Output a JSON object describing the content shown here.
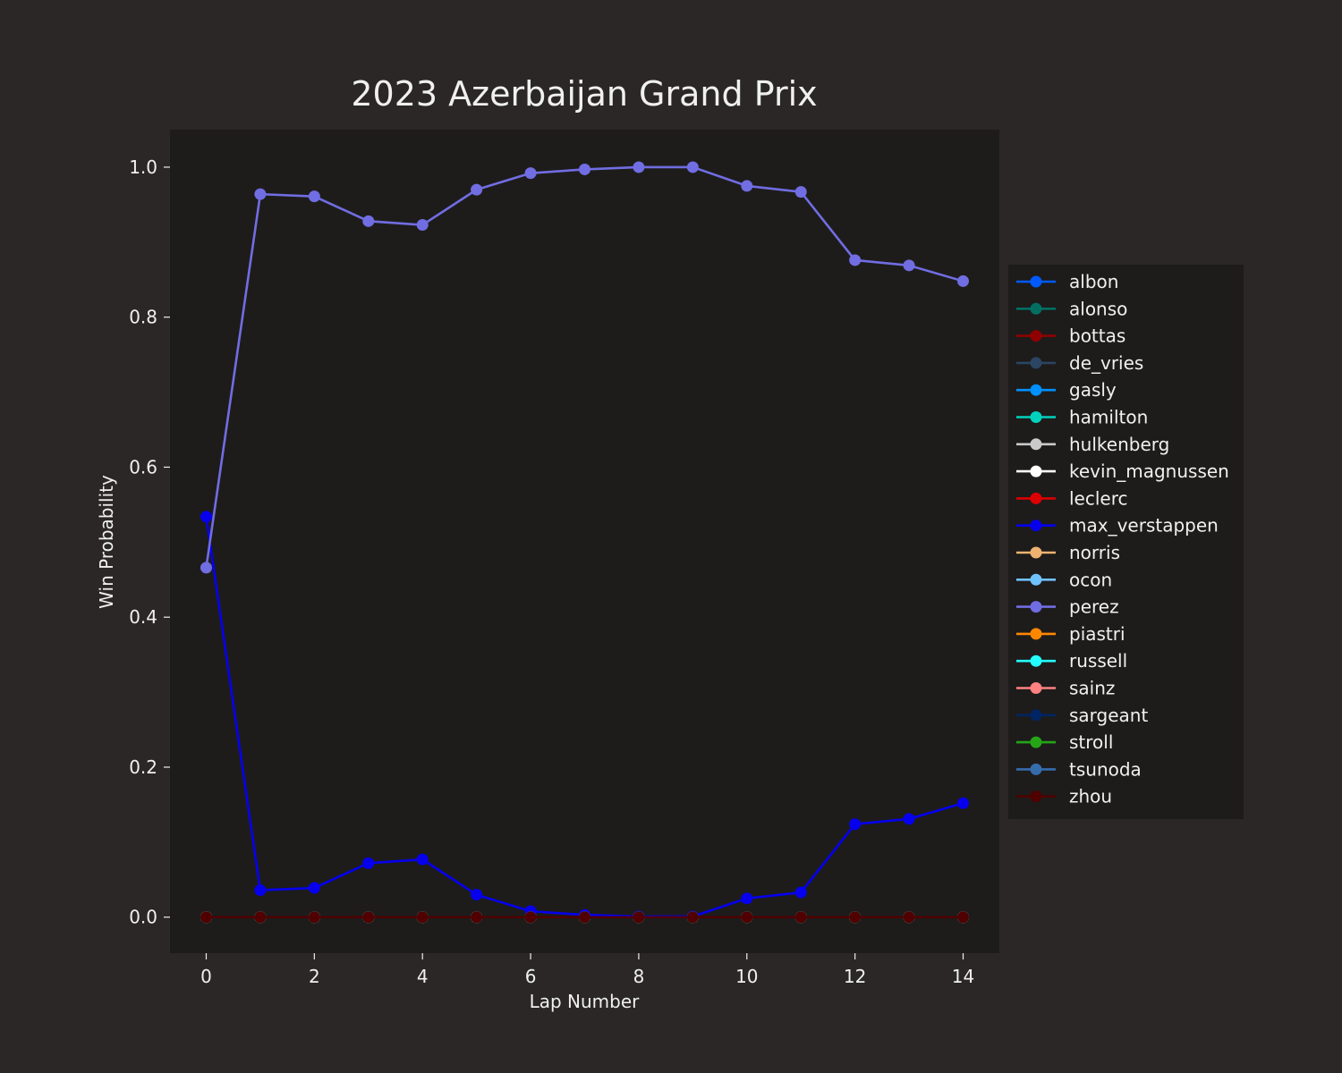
{
  "chart_data": {
    "type": "line",
    "title": "2023 Azerbaijan Grand Prix",
    "xlabel": "Lap Number",
    "ylabel": "Win Probability",
    "xlim": [
      -0.67,
      14.67
    ],
    "ylim": [
      -0.048,
      1.05
    ],
    "xticks": [
      0,
      2,
      4,
      6,
      8,
      10,
      12,
      14
    ],
    "yticks": [
      0.0,
      0.2,
      0.4,
      0.6,
      0.8,
      1.0
    ],
    "grid": false,
    "legend_position": "right",
    "x": [
      0,
      1,
      2,
      3,
      4,
      5,
      6,
      7,
      8,
      9,
      10,
      11,
      12,
      13,
      14
    ],
    "series": [
      {
        "name": "albon",
        "color": "#005aff",
        "values": [
          0,
          0,
          0,
          0,
          0,
          0,
          0,
          0,
          0,
          0,
          0,
          0,
          0,
          0,
          0
        ]
      },
      {
        "name": "alonso",
        "color": "#006f62",
        "values": [
          0,
          0,
          0,
          0,
          0,
          0,
          0,
          0,
          0,
          0,
          0,
          0,
          0,
          0,
          0
        ]
      },
      {
        "name": "bottas",
        "color": "#900000",
        "values": [
          0,
          0,
          0,
          0,
          0,
          0,
          0,
          0,
          0,
          0,
          0,
          0,
          0,
          0,
          0
        ]
      },
      {
        "name": "de_vries",
        "color": "#2b4562",
        "values": [
          0,
          0,
          0,
          0,
          0,
          0,
          0,
          0,
          0,
          0,
          0,
          0,
          0,
          0,
          0
        ]
      },
      {
        "name": "gasly",
        "color": "#0090ff",
        "values": [
          0,
          0,
          0,
          0,
          0,
          0,
          0,
          0,
          0,
          0,
          0,
          0,
          0,
          0,
          0
        ]
      },
      {
        "name": "hamilton",
        "color": "#00d2be",
        "values": [
          0,
          0,
          0,
          0,
          0,
          0,
          0,
          0,
          0,
          0,
          0,
          0,
          0,
          0,
          0
        ]
      },
      {
        "name": "hulkenberg",
        "color": "#cacaca",
        "values": [
          0,
          0,
          0,
          0,
          0,
          0,
          0,
          0,
          0,
          0,
          0,
          0,
          0,
          0,
          0
        ]
      },
      {
        "name": "kevin_magnussen",
        "color": "#ffffff",
        "values": [
          0,
          0,
          0,
          0,
          0,
          0,
          0,
          0,
          0,
          0,
          0,
          0,
          0,
          0,
          0
        ]
      },
      {
        "name": "leclerc",
        "color": "#dc0000",
        "values": [
          0,
          0,
          0,
          0,
          0,
          0,
          0,
          0,
          0,
          0,
          0,
          0,
          0,
          0,
          0
        ]
      },
      {
        "name": "max_verstappen",
        "color": "#0600ef",
        "values": [
          0.534,
          0.036,
          0.039,
          0.072,
          0.077,
          0.03,
          0.008,
          0.003,
          0.001,
          0.001,
          0.025,
          0.033,
          0.124,
          0.131,
          0.152
        ]
      },
      {
        "name": "norris",
        "color": "#eeb370",
        "values": [
          0,
          0,
          0,
          0,
          0,
          0,
          0,
          0,
          0,
          0,
          0,
          0,
          0,
          0,
          0
        ]
      },
      {
        "name": "ocon",
        "color": "#70c2ff",
        "values": [
          0,
          0,
          0,
          0,
          0,
          0,
          0,
          0,
          0,
          0,
          0,
          0,
          0,
          0,
          0
        ]
      },
      {
        "name": "perez",
        "color": "#716de2",
        "values": [
          0.466,
          0.964,
          0.961,
          0.928,
          0.923,
          0.97,
          0.992,
          0.997,
          1.0,
          1.0,
          0.975,
          0.967,
          0.876,
          0.869,
          0.848
        ]
      },
      {
        "name": "piastri",
        "color": "#ff8700",
        "values": [
          0,
          0,
          0,
          0,
          0,
          0,
          0,
          0,
          0,
          0,
          0,
          0,
          0,
          0,
          0
        ]
      },
      {
        "name": "russell",
        "color": "#24ffff",
        "values": [
          0,
          0,
          0,
          0,
          0,
          0,
          0,
          0,
          0,
          0,
          0,
          0,
          0,
          0,
          0
        ]
      },
      {
        "name": "sainz",
        "color": "#ff8181",
        "values": [
          0,
          0,
          0,
          0,
          0,
          0,
          0,
          0,
          0,
          0,
          0,
          0,
          0,
          0,
          0
        ]
      },
      {
        "name": "sargeant",
        "color": "#012564",
        "values": [
          0,
          0,
          0,
          0,
          0,
          0,
          0,
          0,
          0,
          0,
          0,
          0,
          0,
          0,
          0
        ]
      },
      {
        "name": "stroll",
        "color": "#25a617",
        "values": [
          0,
          0,
          0,
          0,
          0,
          0,
          0,
          0,
          0,
          0,
          0,
          0,
          0,
          0,
          0
        ]
      },
      {
        "name": "tsunoda",
        "color": "#356cac",
        "values": [
          0,
          0,
          0,
          0,
          0,
          0,
          0,
          0,
          0,
          0,
          0,
          0,
          0,
          0,
          0
        ]
      },
      {
        "name": "zhou",
        "color": "#500000",
        "values": [
          0,
          0,
          0,
          0,
          0,
          0,
          0,
          0,
          0,
          0,
          0,
          0,
          0,
          0,
          0
        ]
      }
    ]
  },
  "colors": {
    "figure_background": "#2a2726",
    "plot_background": "#1d1c1b",
    "legend_background": "#1d1c1b",
    "text": "#f0f0f0"
  }
}
